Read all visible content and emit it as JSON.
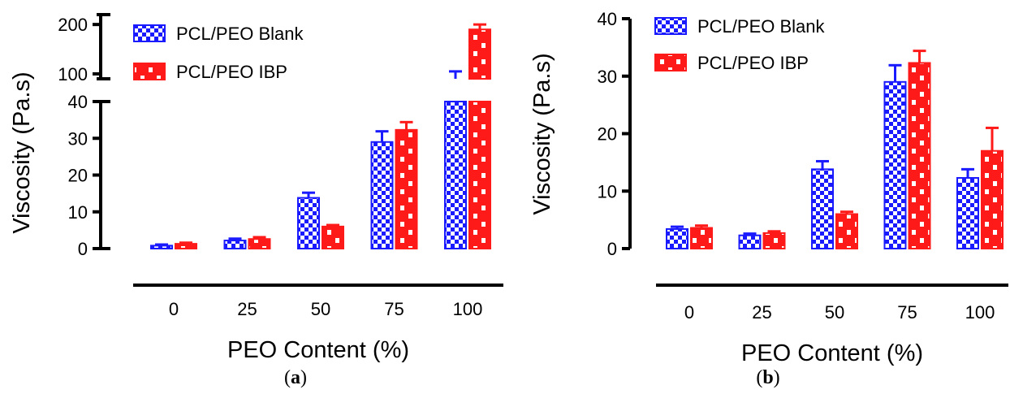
{
  "colors": {
    "blank": "#1a1aff",
    "ibp": "#ff1a1a",
    "axis": "#000000"
  },
  "chart_data": [
    {
      "panel": "a",
      "panel_label": "a",
      "type": "bar",
      "categories": [
        "0",
        "25",
        "50",
        "75",
        "100"
      ],
      "xlabel": "PEO Content (%)",
      "ylabel": "Viscosity (Pa.s)",
      "y_axis_break": true,
      "ylim_lower": [
        0,
        40
      ],
      "ylim_upper": [
        90,
        220
      ],
      "yticks_lower": [
        "0",
        "10",
        "20",
        "30",
        "40"
      ],
      "yticks_upper": [
        "100",
        "200"
      ],
      "legend_position": "top-left",
      "series": [
        {
          "name": "PCL/PEO Blank",
          "color_key": "blank",
          "pattern": "checker",
          "values": [
            0.8,
            2.2,
            13.8,
            29.0,
            90
          ],
          "errors": [
            0.3,
            0.5,
            1.4,
            2.9,
            15
          ]
        },
        {
          "name": "PCL/PEO IBP",
          "color_key": "ibp",
          "pattern": "brick",
          "values": [
            1.3,
            2.6,
            6.0,
            32.3,
            190
          ],
          "errors": [
            0.3,
            0.5,
            0.4,
            2.1,
            10
          ]
        }
      ]
    },
    {
      "panel": "b",
      "panel_label": "b",
      "type": "bar",
      "categories": [
        "0",
        "25",
        "50",
        "75",
        "100"
      ],
      "xlabel": "PEO Content (%)",
      "ylabel": "Viscosity (Pa.s)",
      "ylim": [
        0,
        40
      ],
      "yticks": [
        "0",
        "10",
        "20",
        "30",
        "40"
      ],
      "legend_position": "top-left",
      "series": [
        {
          "name": "PCL/PEO Blank",
          "color_key": "blank",
          "pattern": "checker",
          "values": [
            3.4,
            2.3,
            13.8,
            29.0,
            12.3
          ],
          "errors": [
            0.4,
            0.3,
            1.4,
            2.9,
            1.5
          ]
        },
        {
          "name": "PCL/PEO IBP",
          "color_key": "ibp",
          "pattern": "brick",
          "values": [
            3.6,
            2.7,
            6.0,
            32.3,
            17.0
          ],
          "errors": [
            0.4,
            0.3,
            0.4,
            2.1,
            4.0
          ]
        }
      ]
    }
  ]
}
